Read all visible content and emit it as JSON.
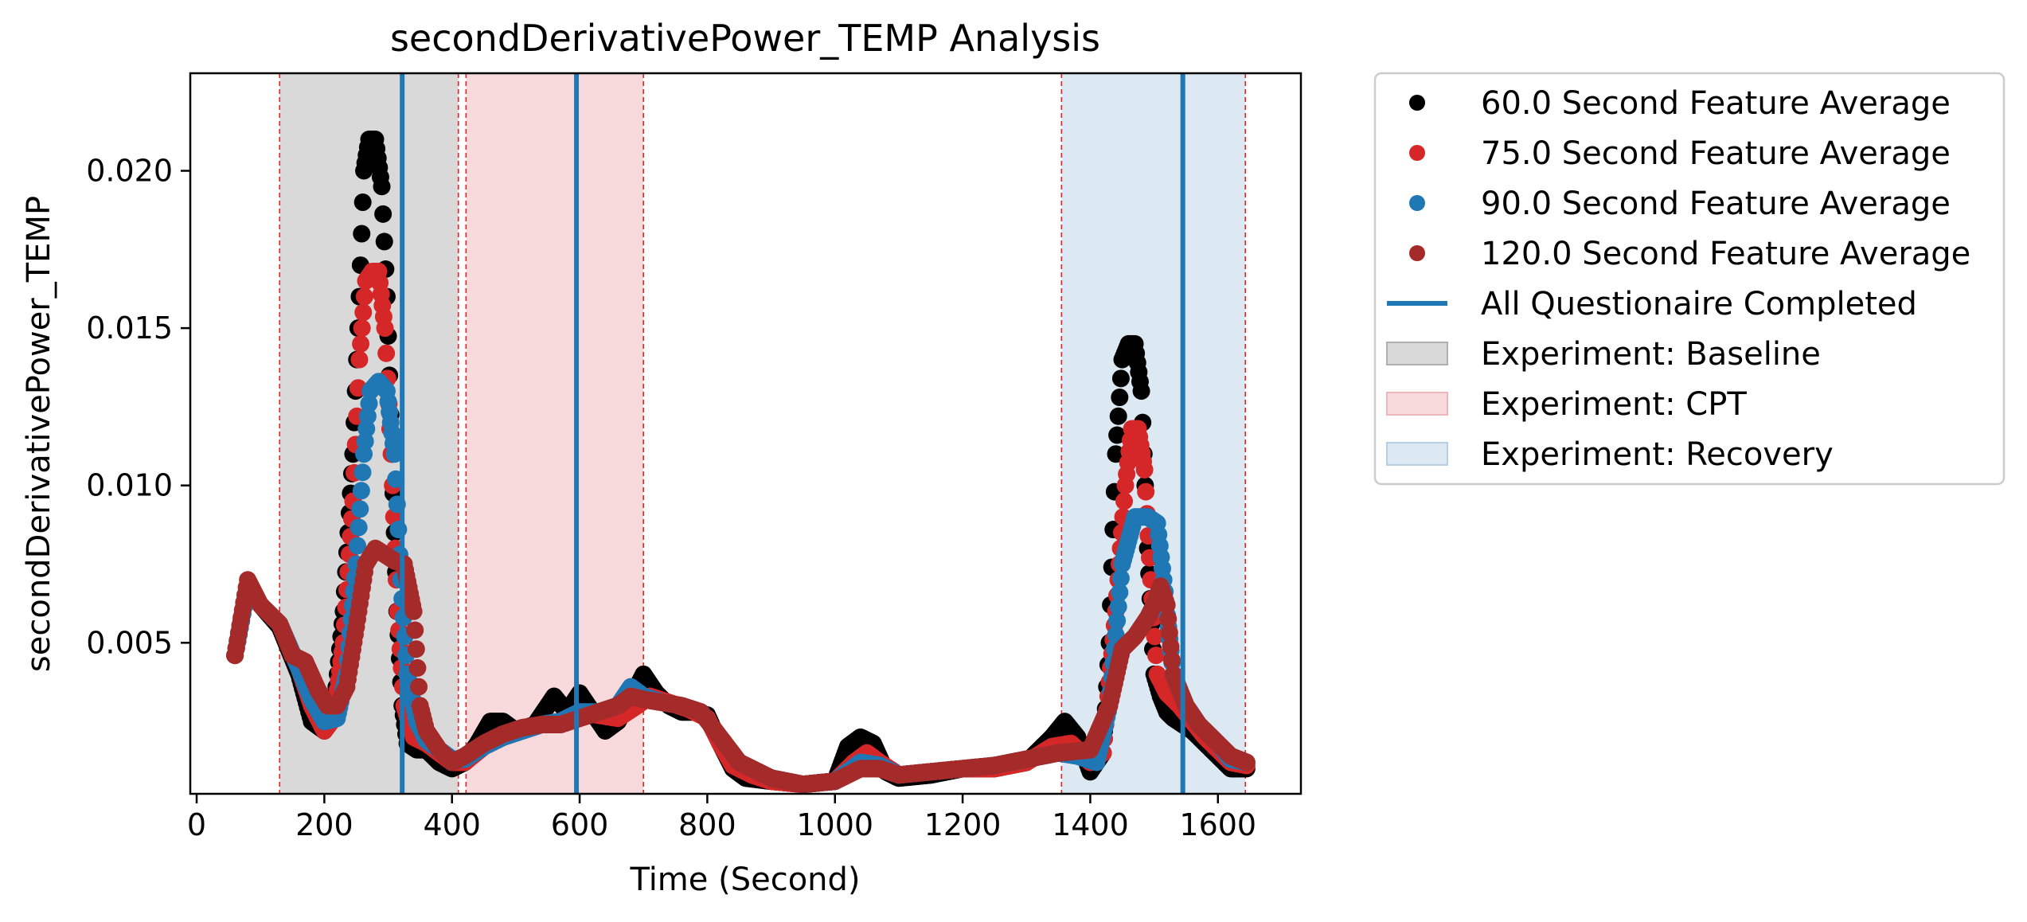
{
  "chart_data": {
    "type": "scatter",
    "title": "secondDerivativePower_TEMP Analysis",
    "xlabel": "Time (Second)",
    "ylabel": "secondDerivativePower_TEMP",
    "xlim": [
      -10,
      1730
    ],
    "ylim": [
      0.0002,
      0.0231
    ],
    "x_ticks": [
      0,
      200,
      400,
      600,
      800,
      1000,
      1200,
      1400,
      1600
    ],
    "y_ticks": [
      0.005,
      0.01,
      0.015,
      0.02
    ],
    "x_tick_labels": [
      "0",
      "200",
      "400",
      "600",
      "800",
      "1000",
      "1200",
      "1400",
      "1600"
    ],
    "y_tick_labels": [
      "0.005",
      "0.010",
      "0.015",
      "0.020"
    ],
    "legend_position": "outside-right",
    "experiments": [
      {
        "name": "Experiment: Baseline",
        "start": 130,
        "end": 410,
        "color": "#d9d9d9"
      },
      {
        "name": "Experiment: CPT",
        "start": 422,
        "end": 700,
        "color": "#f8d9dc"
      },
      {
        "name": "Experiment: Recovery",
        "start": 1355,
        "end": 1643,
        "color": "#dce8f2"
      }
    ],
    "questionnaire_label": "All Questionaire Completed",
    "questionnaire_color": "#1f77b4",
    "questionnaire_times": [
      322,
      595,
      1545
    ],
    "series": [
      {
        "name": "60.0 Second Feature Average",
        "color": "#000000",
        "x": [
          60,
          80,
          100,
          130,
          160,
          180,
          200,
          215,
          230,
          245,
          255,
          262,
          270,
          280,
          290,
          298,
          306,
          314,
          322,
          330,
          345,
          360,
          380,
          400,
          420,
          440,
          460,
          480,
          500,
          530,
          560,
          580,
          600,
          620,
          640,
          660,
          680,
          700,
          720,
          740,
          760,
          780,
          800,
          820,
          840,
          860,
          900,
          950,
          1000,
          1020,
          1040,
          1060,
          1080,
          1100,
          1150,
          1200,
          1250,
          1300,
          1340,
          1360,
          1380,
          1400,
          1420,
          1430,
          1440,
          1450,
          1460,
          1470,
          1480,
          1490,
          1500,
          1510,
          1520,
          1530,
          1545,
          1560,
          1580,
          1600,
          1620,
          1645
        ],
        "y": [
          0.0046,
          0.0068,
          0.0062,
          0.0055,
          0.004,
          0.0025,
          0.0022,
          0.0028,
          0.006,
          0.011,
          0.016,
          0.02,
          0.021,
          0.021,
          0.0195,
          0.016,
          0.011,
          0.006,
          0.003,
          0.0018,
          0.0016,
          0.0016,
          0.0012,
          0.001,
          0.0012,
          0.0018,
          0.0025,
          0.0025,
          0.0022,
          0.0024,
          0.0033,
          0.0028,
          0.0034,
          0.0028,
          0.0022,
          0.0025,
          0.0032,
          0.004,
          0.0034,
          0.003,
          0.0028,
          0.0028,
          0.0027,
          0.0018,
          0.001,
          0.0007,
          0.0006,
          0.0005,
          0.0006,
          0.0017,
          0.002,
          0.0018,
          0.0009,
          0.0007,
          0.0008,
          0.001,
          0.001,
          0.0012,
          0.002,
          0.0025,
          0.002,
          0.0009,
          0.0015,
          0.005,
          0.011,
          0.014,
          0.0145,
          0.0145,
          0.013,
          0.008,
          0.004,
          0.0033,
          0.0028,
          0.0026,
          0.0024,
          0.0022,
          0.0018,
          0.0014,
          0.001,
          0.001
        ]
      },
      {
        "name": "75.0 Second Feature Average",
        "color": "#d62728",
        "x": [
          60,
          80,
          100,
          130,
          160,
          180,
          200,
          215,
          230,
          245,
          255,
          265,
          275,
          285,
          295,
          305,
          315,
          325,
          340,
          360,
          380,
          400,
          420,
          450,
          480,
          510,
          540,
          570,
          600,
          630,
          660,
          690,
          710,
          740,
          770,
          800,
          820,
          840,
          870,
          900,
          950,
          1000,
          1030,
          1050,
          1070,
          1100,
          1150,
          1200,
          1250,
          1300,
          1340,
          1370,
          1400,
          1420,
          1440,
          1455,
          1465,
          1475,
          1485,
          1495,
          1505,
          1520,
          1540,
          1560,
          1580,
          1600,
          1620,
          1645
        ],
        "y": [
          0.0046,
          0.0068,
          0.0062,
          0.0056,
          0.0042,
          0.003,
          0.0022,
          0.0026,
          0.005,
          0.0095,
          0.014,
          0.0165,
          0.0168,
          0.0168,
          0.015,
          0.011,
          0.006,
          0.003,
          0.002,
          0.0018,
          0.0015,
          0.0012,
          0.0012,
          0.0017,
          0.002,
          0.0022,
          0.0024,
          0.0025,
          0.0028,
          0.0027,
          0.0026,
          0.003,
          0.0033,
          0.0031,
          0.0029,
          0.0026,
          0.0018,
          0.0011,
          0.0008,
          0.0006,
          0.0005,
          0.0006,
          0.0012,
          0.0015,
          0.0012,
          0.0008,
          0.0009,
          0.001,
          0.001,
          0.0012,
          0.0017,
          0.0018,
          0.0012,
          0.0015,
          0.006,
          0.01,
          0.0118,
          0.0118,
          0.0105,
          0.007,
          0.004,
          0.0034,
          0.003,
          0.0025,
          0.002,
          0.0016,
          0.0012,
          0.0011
        ]
      },
      {
        "name": "90.0 Second Feature Average",
        "color": "#1f77b4",
        "x": [
          60,
          80,
          100,
          130,
          160,
          180,
          200,
          220,
          235,
          250,
          262,
          272,
          285,
          298,
          310,
          320,
          330,
          345,
          360,
          380,
          400,
          420,
          450,
          480,
          510,
          540,
          570,
          600,
          630,
          660,
          680,
          700,
          730,
          760,
          790,
          820,
          850,
          900,
          950,
          1000,
          1040,
          1070,
          1100,
          1150,
          1200,
          1250,
          1300,
          1350,
          1380,
          1410,
          1430,
          1450,
          1470,
          1490,
          1505,
          1515,
          1530,
          1550,
          1570,
          1600,
          1620,
          1645
        ],
        "y": [
          0.0046,
          0.0068,
          0.0062,
          0.0056,
          0.0042,
          0.0032,
          0.0025,
          0.0026,
          0.004,
          0.0075,
          0.011,
          0.013,
          0.0133,
          0.013,
          0.011,
          0.007,
          0.004,
          0.0025,
          0.0019,
          0.0016,
          0.0013,
          0.0013,
          0.0017,
          0.002,
          0.0022,
          0.0024,
          0.0025,
          0.0028,
          0.0028,
          0.003,
          0.0036,
          0.0033,
          0.0031,
          0.003,
          0.0028,
          0.002,
          0.0012,
          0.0007,
          0.0005,
          0.0006,
          0.0012,
          0.0011,
          0.0008,
          0.0009,
          0.001,
          0.0011,
          0.0013,
          0.0015,
          0.0014,
          0.0012,
          0.003,
          0.0075,
          0.009,
          0.009,
          0.0088,
          0.007,
          0.004,
          0.003,
          0.0024,
          0.0018,
          0.0013,
          0.0012
        ]
      },
      {
        "name": "120.0 Second Feature Average",
        "color": "#a52a2a",
        "x": [
          60,
          80,
          100,
          130,
          150,
          170,
          190,
          205,
          220,
          235,
          250,
          265,
          280,
          295,
          310,
          325,
          340,
          350,
          360,
          380,
          400,
          420,
          450,
          480,
          510,
          540,
          570,
          600,
          630,
          660,
          680,
          700,
          730,
          760,
          790,
          820,
          850,
          900,
          950,
          1000,
          1040,
          1070,
          1100,
          1150,
          1200,
          1250,
          1300,
          1350,
          1400,
          1430,
          1450,
          1470,
          1490,
          1500,
          1510,
          1520,
          1530,
          1550,
          1570,
          1600,
          1620,
          1645
        ],
        "y": [
          0.0046,
          0.007,
          0.0062,
          0.0056,
          0.0046,
          0.0044,
          0.0035,
          0.003,
          0.003,
          0.0036,
          0.0055,
          0.0075,
          0.008,
          0.0078,
          0.0076,
          0.0075,
          0.006,
          0.003,
          0.0022,
          0.0016,
          0.0012,
          0.0014,
          0.0018,
          0.0021,
          0.0023,
          0.0024,
          0.0024,
          0.0026,
          0.0028,
          0.003,
          0.0033,
          0.0032,
          0.0031,
          0.003,
          0.0028,
          0.002,
          0.0012,
          0.0007,
          0.0005,
          0.0006,
          0.001,
          0.001,
          0.0008,
          0.0009,
          0.001,
          0.0011,
          0.0013,
          0.0015,
          0.0016,
          0.003,
          0.0048,
          0.0052,
          0.0058,
          0.0062,
          0.0068,
          0.0062,
          0.004,
          0.003,
          0.0024,
          0.0018,
          0.0014,
          0.0012
        ]
      }
    ]
  }
}
